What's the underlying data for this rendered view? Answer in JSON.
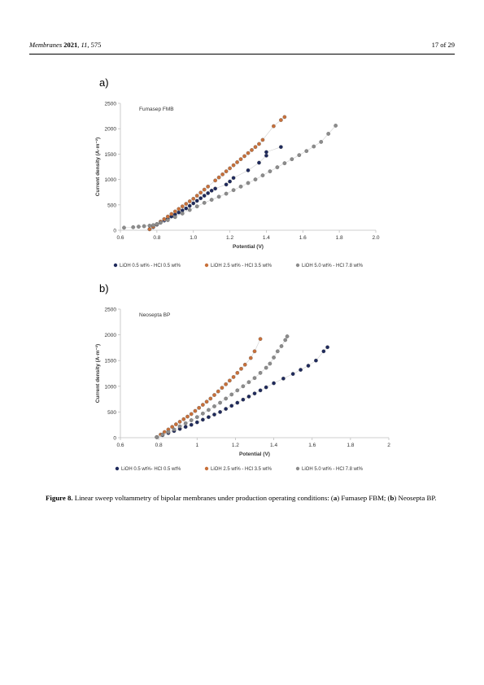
{
  "header": {
    "journal": "Membranes",
    "year": "2021",
    "volume": "11",
    "article": "575",
    "page": "17 of 29"
  },
  "caption": {
    "label": "Figure 8.",
    "text_1": " Linear sweep voltammetry of bipolar membranes under production operating conditions: (",
    "a": "a",
    "text_2": ") Fumasep FBM; (",
    "b": "b",
    "text_3": ") Neosepta BP."
  },
  "colors": {
    "series1": "#1f2a5c",
    "series2": "#c8703a",
    "series3": "#8c8c8c",
    "axis": "#bfbfbf",
    "text": "#333333"
  },
  "chart_data": [
    {
      "type": "scatter",
      "panel_label": "a)",
      "title": "Fumasep FMB",
      "xlabel": "Potential (V)",
      "ylabel": "Current density (A·m⁻²)",
      "xlim": [
        0.6,
        2.0
      ],
      "ylim": [
        0,
        2500
      ],
      "x_ticks": [
        "0.6",
        "0.8",
        "1.0",
        "1.2",
        "1.4",
        "1.6",
        "1.8",
        "2.0"
      ],
      "y_ticks": [
        "0",
        "500",
        "1000",
        "1500",
        "2000",
        "2500"
      ],
      "legend_position": "bottom",
      "series": [
        {
          "name": "LiOH 0.5 wt% - HCl 0.5 wt%",
          "x": [
            0.76,
            0.78,
            0.8,
            0.82,
            0.84,
            0.86,
            0.88,
            0.9,
            0.92,
            0.94,
            0.96,
            0.98,
            1.0,
            1.02,
            1.04,
            1.06,
            1.08,
            1.1,
            1.12,
            1.18,
            1.2,
            1.22,
            1.3,
            1.36,
            1.4,
            1.4,
            1.48
          ],
          "y": [
            20,
            60,
            110,
            150,
            190,
            230,
            270,
            310,
            350,
            390,
            430,
            480,
            530,
            580,
            630,
            680,
            730,
            780,
            820,
            900,
            960,
            1030,
            1180,
            1330,
            1470,
            1540,
            1640
          ]
        },
        {
          "name": "LiOH 2.5 wt% - HCl 3.5 wt%",
          "x": [
            0.76,
            0.78,
            0.8,
            0.82,
            0.84,
            0.86,
            0.88,
            0.9,
            0.92,
            0.94,
            0.96,
            0.98,
            1.0,
            1.02,
            1.04,
            1.06,
            1.08,
            1.12,
            1.14,
            1.16,
            1.18,
            1.2,
            1.22,
            1.24,
            1.26,
            1.28,
            1.3,
            1.32,
            1.34,
            1.36,
            1.38,
            1.44,
            1.48,
            1.5
          ],
          "y": [
            20,
            70,
            120,
            170,
            220,
            270,
            320,
            370,
            420,
            470,
            520,
            570,
            620,
            680,
            740,
            800,
            860,
            980,
            1040,
            1100,
            1160,
            1220,
            1280,
            1340,
            1400,
            1460,
            1520,
            1580,
            1640,
            1700,
            1780,
            2050,
            2170,
            2230
          ]
        },
        {
          "name": "LiOH 5.0 wt% - HCl 7.8 wt%",
          "x": [
            0.62,
            0.67,
            0.7,
            0.73,
            0.76,
            0.78,
            0.8,
            0.82,
            0.86,
            0.9,
            0.94,
            0.98,
            1.02,
            1.06,
            1.1,
            1.14,
            1.18,
            1.22,
            1.26,
            1.3,
            1.34,
            1.38,
            1.42,
            1.46,
            1.5,
            1.54,
            1.58,
            1.62,
            1.66,
            1.7,
            1.74,
            1.78
          ],
          "y": [
            50,
            60,
            70,
            80,
            90,
            100,
            120,
            150,
            200,
            260,
            330,
            400,
            470,
            540,
            600,
            660,
            720,
            790,
            860,
            930,
            1000,
            1080,
            1160,
            1240,
            1320,
            1400,
            1480,
            1560,
            1650,
            1740,
            1900,
            2060
          ]
        }
      ]
    },
    {
      "type": "scatter",
      "panel_label": "b)",
      "title": "Neosepta BP",
      "xlabel": "Potential (V)",
      "ylabel": "Current density (A·m⁻²)",
      "xlim": [
        0.6,
        2.0
      ],
      "ylim": [
        0,
        2500
      ],
      "x_ticks": [
        "0.6",
        "0.8",
        "1",
        "1.2",
        "1.4",
        "1.6",
        "1.8",
        "2"
      ],
      "y_ticks": [
        "0",
        "500",
        "1000",
        "1500",
        "2000",
        "2500"
      ],
      "legend_position": "bottom",
      "series": [
        {
          "name": "LiOH 0.5 wt%- HCl 0.5 wt%",
          "x": [
            0.79,
            0.82,
            0.85,
            0.88,
            0.91,
            0.94,
            0.97,
            1.0,
            1.03,
            1.06,
            1.09,
            1.12,
            1.15,
            1.18,
            1.21,
            1.24,
            1.27,
            1.3,
            1.33,
            1.36,
            1.4,
            1.45,
            1.5,
            1.54,
            1.58,
            1.62,
            1.66,
            1.68
          ],
          "y": [
            10,
            50,
            90,
            130,
            170,
            210,
            250,
            300,
            350,
            400,
            450,
            500,
            560,
            620,
            680,
            740,
            800,
            860,
            920,
            980,
            1060,
            1150,
            1240,
            1320,
            1400,
            1500,
            1680,
            1760
          ]
        },
        {
          "name": "LiOH 2.5 wt% - HCl 3.5 wt%",
          "x": [
            0.79,
            0.81,
            0.83,
            0.85,
            0.87,
            0.89,
            0.91,
            0.93,
            0.95,
            0.97,
            0.99,
            1.01,
            1.03,
            1.05,
            1.07,
            1.09,
            1.11,
            1.13,
            1.15,
            1.17,
            1.19,
            1.21,
            1.23,
            1.25,
            1.28,
            1.3,
            1.33
          ],
          "y": [
            10,
            60,
            110,
            160,
            210,
            260,
            310,
            360,
            410,
            460,
            520,
            580,
            640,
            700,
            760,
            830,
            900,
            970,
            1040,
            1110,
            1180,
            1260,
            1340,
            1420,
            1550,
            1680,
            1920
          ]
        },
        {
          "name": "LiOH 5.0 wt% - HCl 7.8 wt%",
          "x": [
            0.79,
            0.82,
            0.85,
            0.88,
            0.91,
            0.94,
            0.97,
            1.0,
            1.03,
            1.06,
            1.09,
            1.12,
            1.15,
            1.18,
            1.21,
            1.24,
            1.27,
            1.3,
            1.33,
            1.36,
            1.38,
            1.4,
            1.42,
            1.44,
            1.46,
            1.47
          ],
          "y": [
            10,
            60,
            110,
            160,
            220,
            280,
            340,
            400,
            470,
            540,
            610,
            680,
            760,
            840,
            920,
            1000,
            1080,
            1160,
            1260,
            1360,
            1440,
            1560,
            1680,
            1780,
            1900,
            1970
          ]
        }
      ]
    }
  ]
}
